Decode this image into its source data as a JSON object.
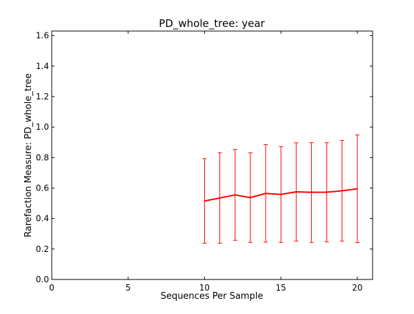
{
  "chart_data": {
    "type": "line",
    "title": "PD_whole_tree: year",
    "xlabel": "Sequences Per Sample",
    "ylabel": "Rarefaction Measure: PD_whole_tree",
    "xlim": [
      0,
      21
    ],
    "ylim": [
      0.0,
      1.63
    ],
    "x_ticks": [
      0,
      5,
      10,
      15,
      20
    ],
    "x_tick_labels": [
      "0",
      "5",
      "10",
      "15",
      "20"
    ],
    "y_ticks": [
      0.0,
      0.2,
      0.4,
      0.6,
      0.8,
      1.0,
      1.2,
      1.4,
      1.6
    ],
    "y_tick_labels": [
      "0.0",
      "0.2",
      "0.4",
      "0.6",
      "0.8",
      "1.0",
      "1.2",
      "1.4",
      "1.6"
    ],
    "grid": false,
    "series": [
      {
        "color": "#ff0000",
        "x": [
          10,
          11,
          12,
          13,
          14,
          15,
          16,
          17,
          18,
          19,
          20
        ],
        "y": [
          0.515,
          0.535,
          0.555,
          0.537,
          0.565,
          0.558,
          0.575,
          0.572,
          0.573,
          0.582,
          0.595
        ],
        "error_low": [
          0.238,
          0.238,
          0.257,
          0.243,
          0.245,
          0.243,
          0.252,
          0.243,
          0.247,
          0.252,
          0.242
        ],
        "error_high": [
          0.793,
          0.832,
          0.853,
          0.831,
          0.885,
          0.872,
          0.897,
          0.898,
          0.898,
          0.912,
          0.948
        ]
      }
    ]
  }
}
